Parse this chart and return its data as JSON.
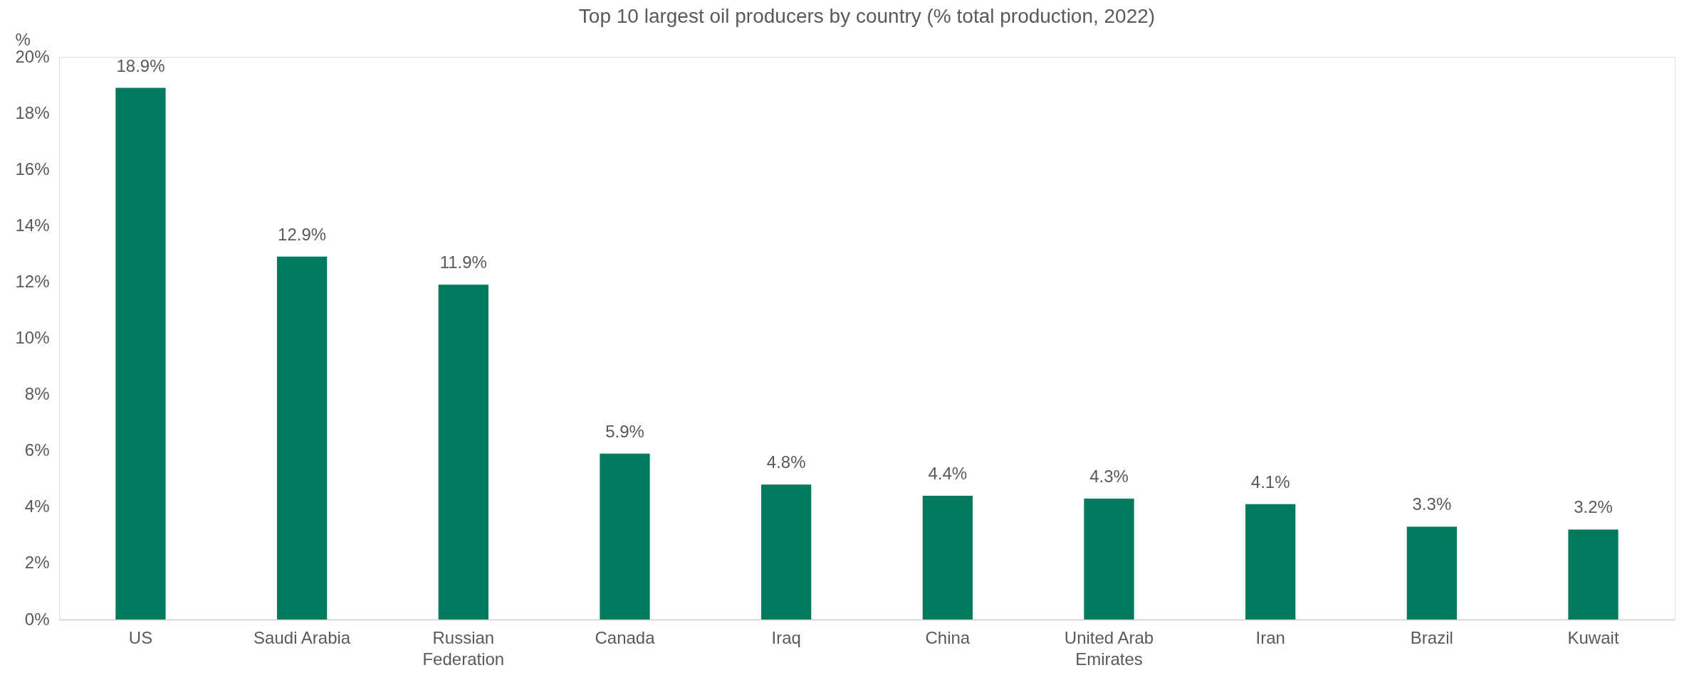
{
  "chart_data": {
    "type": "bar",
    "title": "Top 10 largest oil producers by country (% total production, 2022)",
    "ylabel": "%",
    "categories": [
      "US",
      "Saudi Arabia",
      "Russian Federation",
      "Canada",
      "Iraq",
      "China",
      "United Arab Emirates",
      "Iran",
      "Brazil",
      "Kuwait"
    ],
    "values": [
      18.9,
      12.9,
      11.9,
      5.9,
      4.8,
      4.4,
      4.3,
      4.1,
      3.3,
      3.2
    ],
    "value_labels": [
      "18.9%",
      "12.9%",
      "11.9%",
      "5.9%",
      "4.8%",
      "4.4%",
      "4.3%",
      "4.1%",
      "3.3%",
      "3.2%"
    ],
    "color": "#007a5e",
    "ylim": [
      0,
      20
    ],
    "yticks": [
      {
        "value": 0,
        "label": "0%"
      },
      {
        "value": 2,
        "label": "2%"
      },
      {
        "value": 4,
        "label": "4%"
      },
      {
        "value": 6,
        "label": "6%"
      },
      {
        "value": 8,
        "label": "8%"
      },
      {
        "value": 10,
        "label": "10%"
      },
      {
        "value": 12,
        "label": "12%"
      },
      {
        "value": 14,
        "label": "14%"
      },
      {
        "value": 16,
        "label": "16%"
      },
      {
        "value": 18,
        "label": "18%"
      },
      {
        "value": 20,
        "label": "20%"
      }
    ],
    "grid": false
  }
}
